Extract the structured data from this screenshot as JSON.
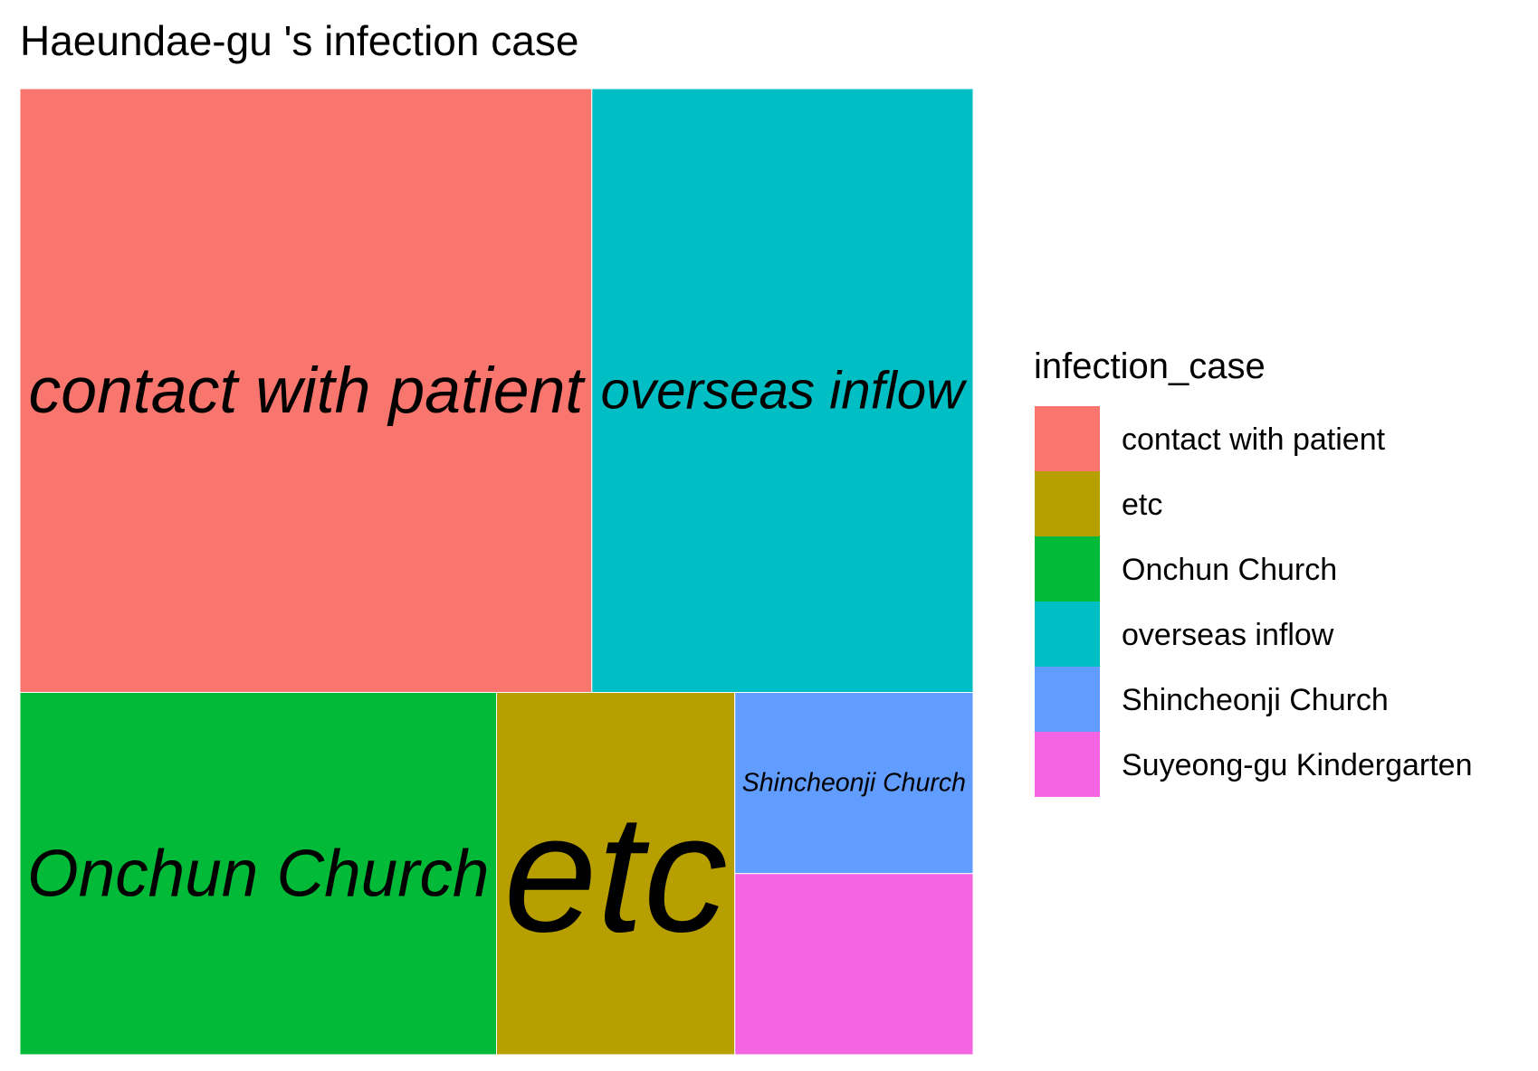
{
  "chart_data": {
    "type": "treemap",
    "title": "Haeundae-gu 's infection case",
    "legend": {
      "title": "infection_case",
      "position": "right",
      "entries": [
        {
          "label": "contact with patient",
          "color": "#F8766D"
        },
        {
          "label": "etc",
          "color": "#B79F00"
        },
        {
          "label": "Onchun Church",
          "color": "#00BA38"
        },
        {
          "label": "overseas inflow",
          "color": "#00BFC4"
        },
        {
          "label": "Shincheonji Church",
          "color": "#619CFF"
        },
        {
          "label": "Suyeong-gu Kindergarten",
          "color": "#F564E3"
        }
      ]
    },
    "tiles": [
      {
        "label": "contact with patient",
        "value": 12,
        "show_label": true
      },
      {
        "label": "overseas inflow",
        "value": 8,
        "show_label": true
      },
      {
        "label": "Onchun Church",
        "value": 6,
        "show_label": true
      },
      {
        "label": "etc",
        "value": 3,
        "show_label": true
      },
      {
        "label": "Shincheonji Church",
        "value": 1.5,
        "show_label": true
      },
      {
        "label": "Suyeong-gu Kindergarten",
        "value": 1.5,
        "show_label": false
      }
    ]
  }
}
